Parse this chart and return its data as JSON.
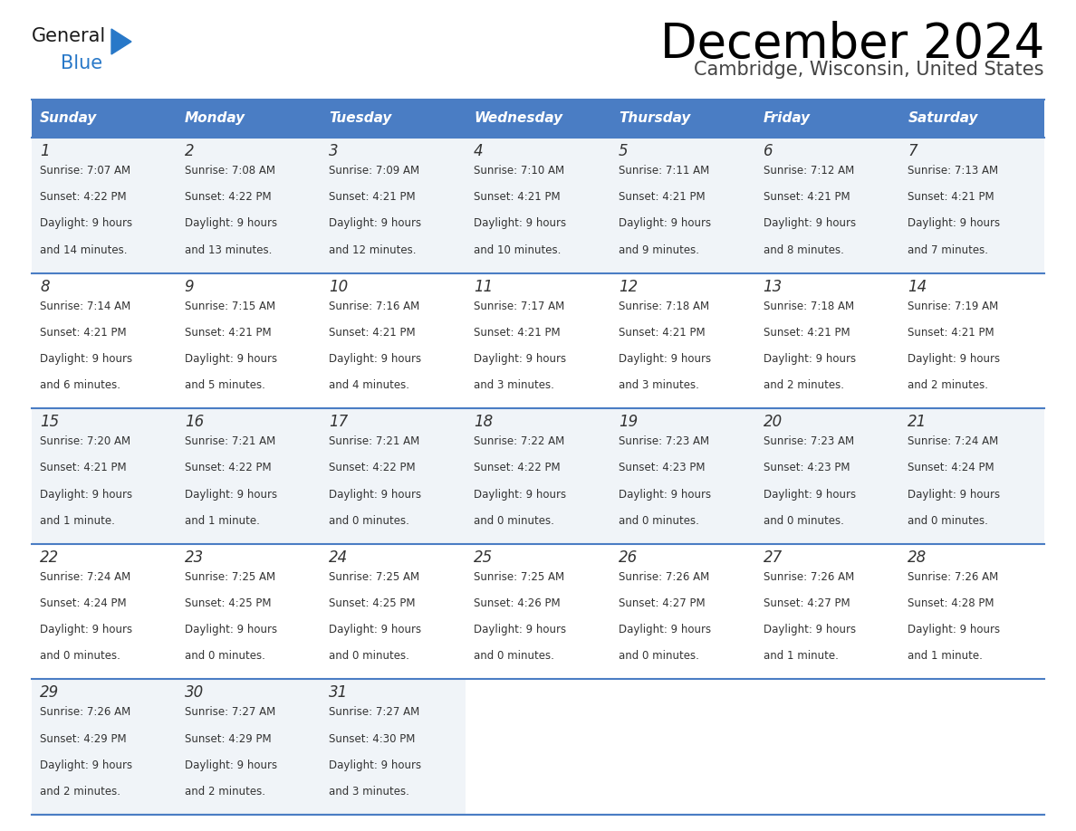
{
  "title": "December 2024",
  "subtitle": "Cambridge, Wisconsin, United States",
  "header_bg_color": "#4A7DC4",
  "header_text_color": "#FFFFFF",
  "cell_bg_white": "#FFFFFF",
  "cell_bg_gray": "#F0F4F8",
  "day_number_color": "#333333",
  "cell_text_color": "#333333",
  "grid_line_color": "#4A7DC4",
  "days_of_week": [
    "Sunday",
    "Monday",
    "Tuesday",
    "Wednesday",
    "Thursday",
    "Friday",
    "Saturday"
  ],
  "weeks": [
    [
      {
        "day": "1",
        "sunrise": "7:07 AM",
        "sunset": "4:22 PM",
        "daylight_line1": "Daylight: 9 hours",
        "daylight_line2": "and 14 minutes."
      },
      {
        "day": "2",
        "sunrise": "7:08 AM",
        "sunset": "4:22 PM",
        "daylight_line1": "Daylight: 9 hours",
        "daylight_line2": "and 13 minutes."
      },
      {
        "day": "3",
        "sunrise": "7:09 AM",
        "sunset": "4:21 PM",
        "daylight_line1": "Daylight: 9 hours",
        "daylight_line2": "and 12 minutes."
      },
      {
        "day": "4",
        "sunrise": "7:10 AM",
        "sunset": "4:21 PM",
        "daylight_line1": "Daylight: 9 hours",
        "daylight_line2": "and 10 minutes."
      },
      {
        "day": "5",
        "sunrise": "7:11 AM",
        "sunset": "4:21 PM",
        "daylight_line1": "Daylight: 9 hours",
        "daylight_line2": "and 9 minutes."
      },
      {
        "day": "6",
        "sunrise": "7:12 AM",
        "sunset": "4:21 PM",
        "daylight_line1": "Daylight: 9 hours",
        "daylight_line2": "and 8 minutes."
      },
      {
        "day": "7",
        "sunrise": "7:13 AM",
        "sunset": "4:21 PM",
        "daylight_line1": "Daylight: 9 hours",
        "daylight_line2": "and 7 minutes."
      }
    ],
    [
      {
        "day": "8",
        "sunrise": "7:14 AM",
        "sunset": "4:21 PM",
        "daylight_line1": "Daylight: 9 hours",
        "daylight_line2": "and 6 minutes."
      },
      {
        "day": "9",
        "sunrise": "7:15 AM",
        "sunset": "4:21 PM",
        "daylight_line1": "Daylight: 9 hours",
        "daylight_line2": "and 5 minutes."
      },
      {
        "day": "10",
        "sunrise": "7:16 AM",
        "sunset": "4:21 PM",
        "daylight_line1": "Daylight: 9 hours",
        "daylight_line2": "and 4 minutes."
      },
      {
        "day": "11",
        "sunrise": "7:17 AM",
        "sunset": "4:21 PM",
        "daylight_line1": "Daylight: 9 hours",
        "daylight_line2": "and 3 minutes."
      },
      {
        "day": "12",
        "sunrise": "7:18 AM",
        "sunset": "4:21 PM",
        "daylight_line1": "Daylight: 9 hours",
        "daylight_line2": "and 3 minutes."
      },
      {
        "day": "13",
        "sunrise": "7:18 AM",
        "sunset": "4:21 PM",
        "daylight_line1": "Daylight: 9 hours",
        "daylight_line2": "and 2 minutes."
      },
      {
        "day": "14",
        "sunrise": "7:19 AM",
        "sunset": "4:21 PM",
        "daylight_line1": "Daylight: 9 hours",
        "daylight_line2": "and 2 minutes."
      }
    ],
    [
      {
        "day": "15",
        "sunrise": "7:20 AM",
        "sunset": "4:21 PM",
        "daylight_line1": "Daylight: 9 hours",
        "daylight_line2": "and 1 minute."
      },
      {
        "day": "16",
        "sunrise": "7:21 AM",
        "sunset": "4:22 PM",
        "daylight_line1": "Daylight: 9 hours",
        "daylight_line2": "and 1 minute."
      },
      {
        "day": "17",
        "sunrise": "7:21 AM",
        "sunset": "4:22 PM",
        "daylight_line1": "Daylight: 9 hours",
        "daylight_line2": "and 0 minutes."
      },
      {
        "day": "18",
        "sunrise": "7:22 AM",
        "sunset": "4:22 PM",
        "daylight_line1": "Daylight: 9 hours",
        "daylight_line2": "and 0 minutes."
      },
      {
        "day": "19",
        "sunrise": "7:23 AM",
        "sunset": "4:23 PM",
        "daylight_line1": "Daylight: 9 hours",
        "daylight_line2": "and 0 minutes."
      },
      {
        "day": "20",
        "sunrise": "7:23 AM",
        "sunset": "4:23 PM",
        "daylight_line1": "Daylight: 9 hours",
        "daylight_line2": "and 0 minutes."
      },
      {
        "day": "21",
        "sunrise": "7:24 AM",
        "sunset": "4:24 PM",
        "daylight_line1": "Daylight: 9 hours",
        "daylight_line2": "and 0 minutes."
      }
    ],
    [
      {
        "day": "22",
        "sunrise": "7:24 AM",
        "sunset": "4:24 PM",
        "daylight_line1": "Daylight: 9 hours",
        "daylight_line2": "and 0 minutes."
      },
      {
        "day": "23",
        "sunrise": "7:25 AM",
        "sunset": "4:25 PM",
        "daylight_line1": "Daylight: 9 hours",
        "daylight_line2": "and 0 minutes."
      },
      {
        "day": "24",
        "sunrise": "7:25 AM",
        "sunset": "4:25 PM",
        "daylight_line1": "Daylight: 9 hours",
        "daylight_line2": "and 0 minutes."
      },
      {
        "day": "25",
        "sunrise": "7:25 AM",
        "sunset": "4:26 PM",
        "daylight_line1": "Daylight: 9 hours",
        "daylight_line2": "and 0 minutes."
      },
      {
        "day": "26",
        "sunrise": "7:26 AM",
        "sunset": "4:27 PM",
        "daylight_line1": "Daylight: 9 hours",
        "daylight_line2": "and 0 minutes."
      },
      {
        "day": "27",
        "sunrise": "7:26 AM",
        "sunset": "4:27 PM",
        "daylight_line1": "Daylight: 9 hours",
        "daylight_line2": "and 1 minute."
      },
      {
        "day": "28",
        "sunrise": "7:26 AM",
        "sunset": "4:28 PM",
        "daylight_line1": "Daylight: 9 hours",
        "daylight_line2": "and 1 minute."
      }
    ],
    [
      {
        "day": "29",
        "sunrise": "7:26 AM",
        "sunset": "4:29 PM",
        "daylight_line1": "Daylight: 9 hours",
        "daylight_line2": "and 2 minutes."
      },
      {
        "day": "30",
        "sunrise": "7:27 AM",
        "sunset": "4:29 PM",
        "daylight_line1": "Daylight: 9 hours",
        "daylight_line2": "and 2 minutes."
      },
      {
        "day": "31",
        "sunrise": "7:27 AM",
        "sunset": "4:30 PM",
        "daylight_line1": "Daylight: 9 hours",
        "daylight_line2": "and 3 minutes."
      },
      null,
      null,
      null,
      null
    ]
  ],
  "logo_general_color": "#1a1a1a",
  "logo_blue_color": "#2878C8",
  "logo_triangle_color": "#2878C8",
  "fig_width": 11.88,
  "fig_height": 9.18,
  "dpi": 100
}
